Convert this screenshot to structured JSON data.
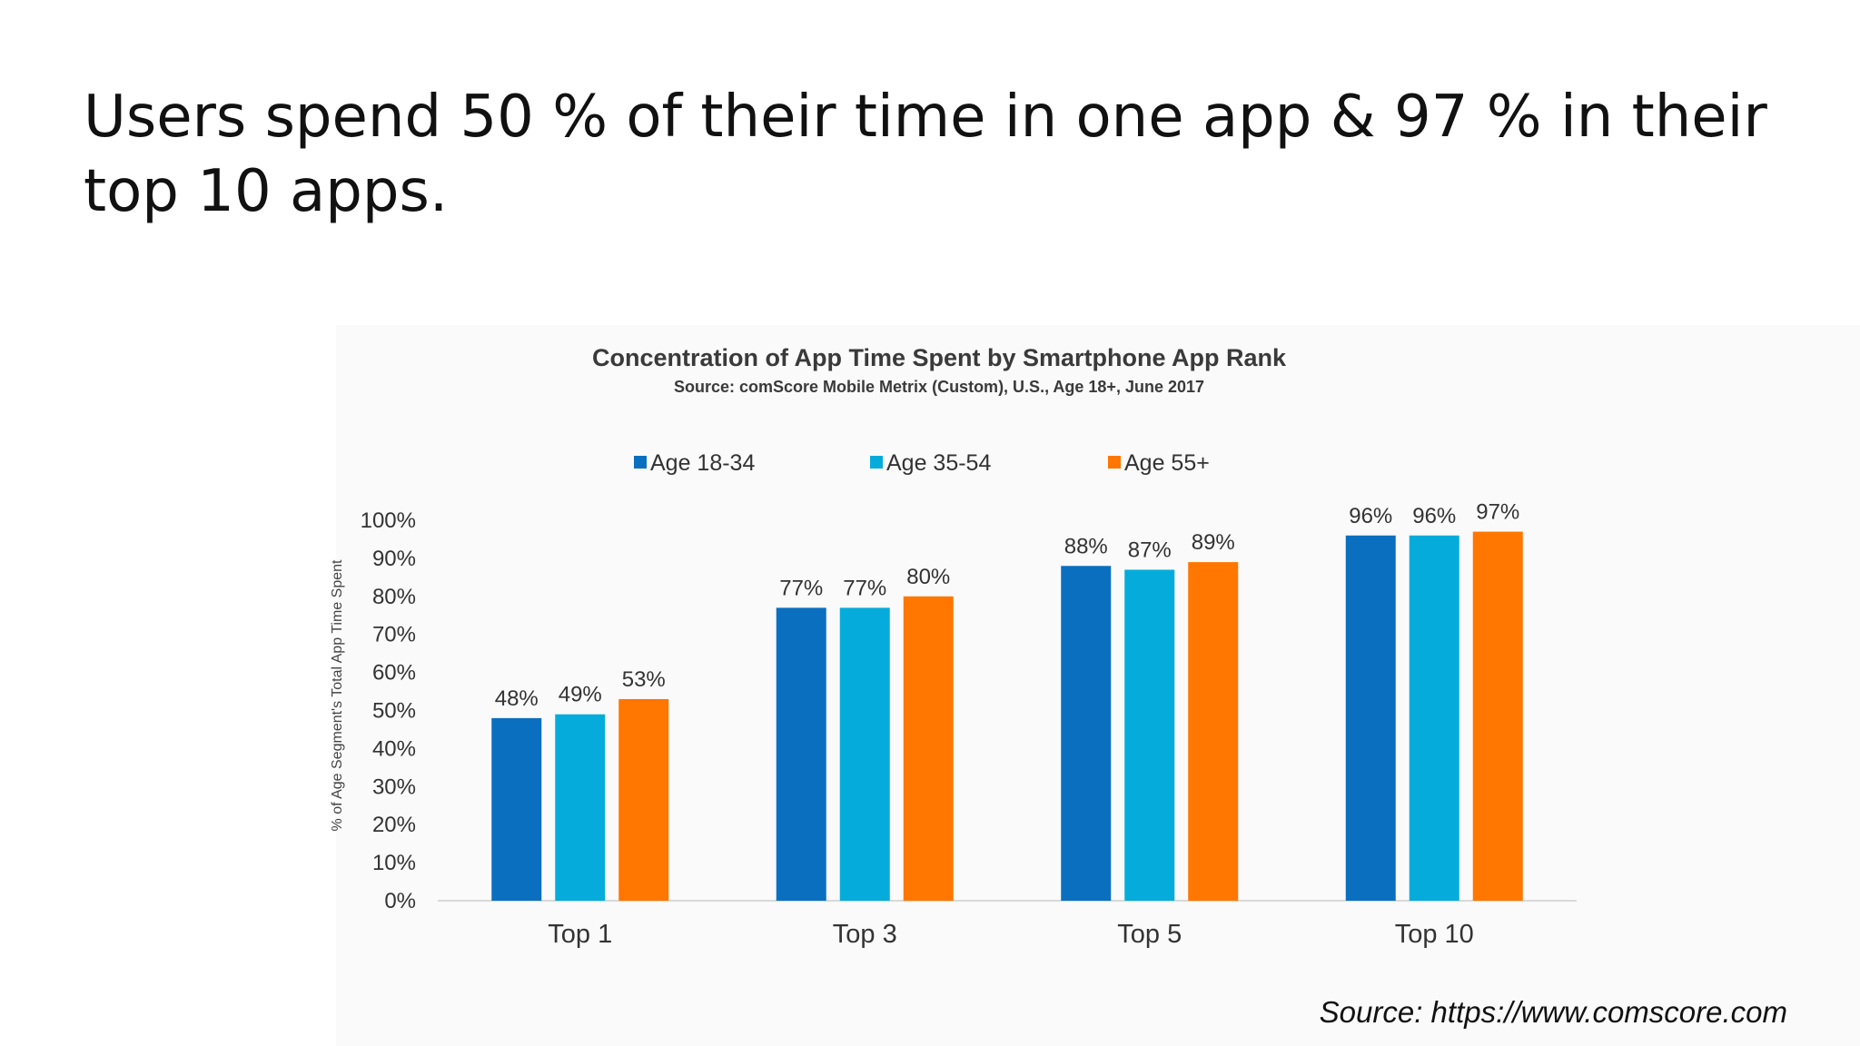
{
  "slide": {
    "title": "Users spend 50 % of their time in one app & 97 % in their top 10 apps.",
    "source_note": "Source:  https://www.comscore.com"
  },
  "chart_data": {
    "type": "bar",
    "title": "Concentration of App Time Spent by Smartphone App Rank",
    "subtitle": "Source: comScore Mobile Metrix (Custom), U.S., Age 18+, June 2017",
    "xlabel": "",
    "ylabel": "% of Age Segment's Total App Time Spent",
    "categories": [
      "Top 1",
      "Top 3",
      "Top 5",
      "Top 10"
    ],
    "ylim": [
      0,
      100
    ],
    "yticks": [
      0,
      10,
      20,
      30,
      40,
      50,
      60,
      70,
      80,
      90,
      100
    ],
    "ytick_suffix": "%",
    "grid": false,
    "legend_position": "top",
    "series": [
      {
        "name": "Age 18-34",
        "color": "#0b6fc0",
        "values": [
          48,
          77,
          88,
          96
        ]
      },
      {
        "name": "Age 35-54",
        "color": "#05acdb",
        "values": [
          49,
          77,
          87,
          96
        ]
      },
      {
        "name": "Age 55+",
        "color": "#ff7600",
        "values": [
          53,
          80,
          89,
          97
        ]
      }
    ]
  }
}
